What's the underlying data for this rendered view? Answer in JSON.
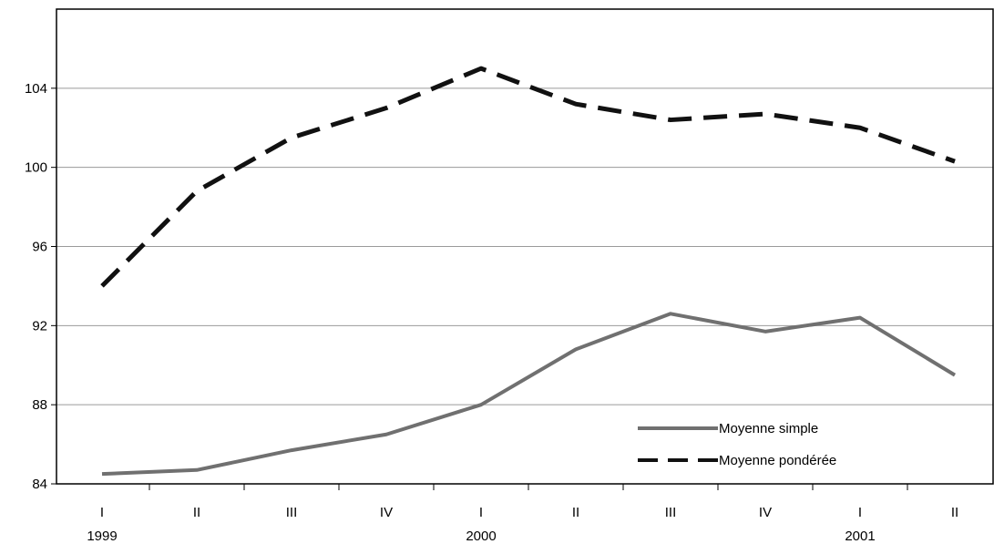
{
  "chart_data": {
    "type": "line",
    "categories": [
      "I",
      "II",
      "III",
      "IV",
      "I",
      "II",
      "III",
      "IV",
      "I",
      "II"
    ],
    "year_labels": [
      {
        "label": "1999",
        "index": 0
      },
      {
        "label": "2000",
        "index": 4
      },
      {
        "label": "2001",
        "index": 8
      }
    ],
    "y_ticks": [
      "84",
      "88",
      "92",
      "96",
      "100",
      "104"
    ],
    "ylim": [
      84,
      108
    ],
    "gridlines": [
      88,
      92,
      96,
      100,
      104
    ],
    "legend_position": "bottom-right",
    "series": [
      {
        "name": "Moyenne simple",
        "style": "solid",
        "color": "#707070",
        "values": [
          84.5,
          84.7,
          85.7,
          86.5,
          88.0,
          90.8,
          92.6,
          91.7,
          92.4,
          89.5
        ]
      },
      {
        "name": "Moyenne pondérée",
        "style": "dashed",
        "color": "#111111",
        "values": [
          94.0,
          98.8,
          101.5,
          103.0,
          105.0,
          103.2,
          102.4,
          102.7,
          102.0,
          100.3
        ]
      }
    ]
  }
}
